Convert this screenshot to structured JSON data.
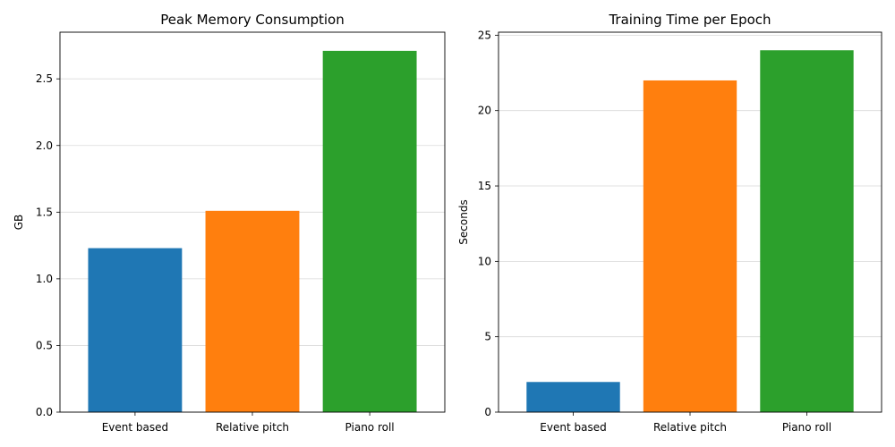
{
  "chart_data": [
    {
      "type": "bar",
      "title": "Peak Memory Consumption",
      "xlabel": "",
      "ylabel": "GB",
      "categories": [
        "Event based",
        "Relative pitch",
        "Piano roll"
      ],
      "values": [
        1.23,
        1.51,
        2.71
      ],
      "colors": [
        "#1f77b4",
        "#ff7f0e",
        "#2ca02c"
      ],
      "ylim": [
        0,
        2.85
      ],
      "yticks": [
        0.0,
        0.5,
        1.0,
        1.5,
        2.0,
        2.5
      ],
      "ytick_labels": [
        "0.0",
        "0.5",
        "1.0",
        "1.5",
        "2.0",
        "2.5"
      ],
      "grid": "y"
    },
    {
      "type": "bar",
      "title": "Training Time per Epoch",
      "xlabel": "",
      "ylabel": "Seconds",
      "categories": [
        "Event based",
        "Relative pitch",
        "Piano roll"
      ],
      "values": [
        2,
        22,
        24
      ],
      "colors": [
        "#1f77b4",
        "#ff7f0e",
        "#2ca02c"
      ],
      "ylim": [
        0,
        25.2
      ],
      "yticks": [
        0,
        5,
        10,
        15,
        20,
        25
      ],
      "ytick_labels": [
        "0",
        "5",
        "10",
        "15",
        "20",
        "25"
      ],
      "grid": "y"
    }
  ]
}
